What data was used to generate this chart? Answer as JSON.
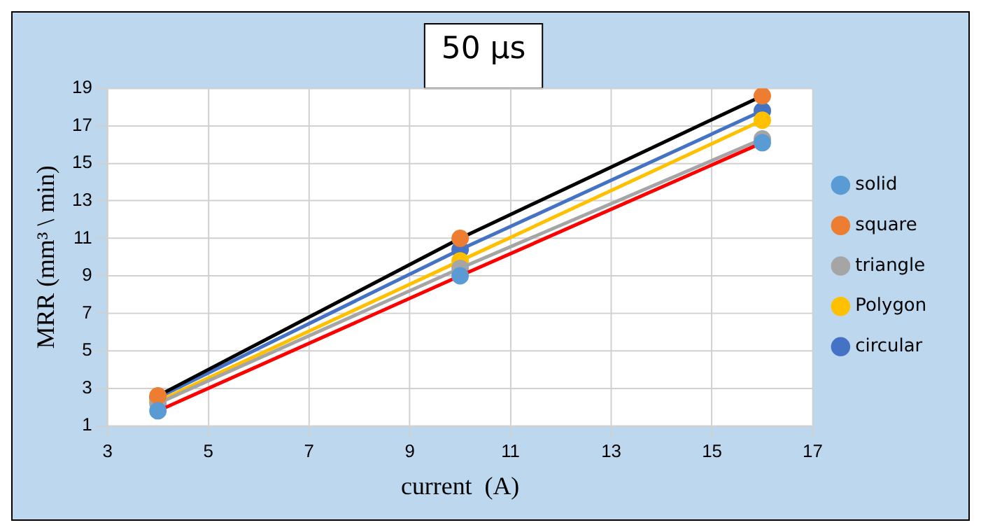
{
  "chart_data": {
    "type": "line",
    "title": "50 µs",
    "xlabel": "current  (A)",
    "ylabel": "MRR (mm³ \\ min)",
    "x": [
      4,
      10,
      16
    ],
    "series": [
      {
        "name": "solid",
        "color": "#ff0000",
        "colors": [
          "#5b9bd5",
          "#5b9bd5",
          "#5b9bd5"
        ],
        "values": [
          1.8,
          9.0,
          16.1
        ]
      },
      {
        "name": "square",
        "color": "#000000",
        "colors": [
          "#ed7d31",
          "#ed7d31",
          "#ed7d31"
        ],
        "values": [
          2.6,
          11.0,
          18.6
        ]
      },
      {
        "name": "triangle",
        "color": "#a5a5a5",
        "colors": [
          "#a5a5a5",
          "#a5a5a5",
          "#a5a5a5"
        ],
        "values": [
          2.2,
          9.4,
          16.3
        ]
      },
      {
        "name": "Polygon",
        "color": "#ffc000",
        "colors": [
          "#ffc000",
          "#ffc000",
          "#ffc000"
        ],
        "values": [
          2.3,
          9.8,
          17.3
        ]
      },
      {
        "name": "circular",
        "color": "#4472c4",
        "colors": [
          "#4472c4",
          "#4472c4",
          "#4472c4"
        ],
        "values": [
          2.5,
          10.4,
          17.8
        ]
      }
    ],
    "xlim": [
      3,
      17
    ],
    "xticks": [
      3,
      5,
      7,
      9,
      11,
      13,
      15,
      17
    ],
    "ylim": [
      1,
      19
    ],
    "yticks": [
      1,
      3,
      5,
      7,
      9,
      11,
      13,
      15,
      17,
      19
    ],
    "grid": true,
    "legend": "right",
    "marker": "circle",
    "line_style": "solid"
  }
}
